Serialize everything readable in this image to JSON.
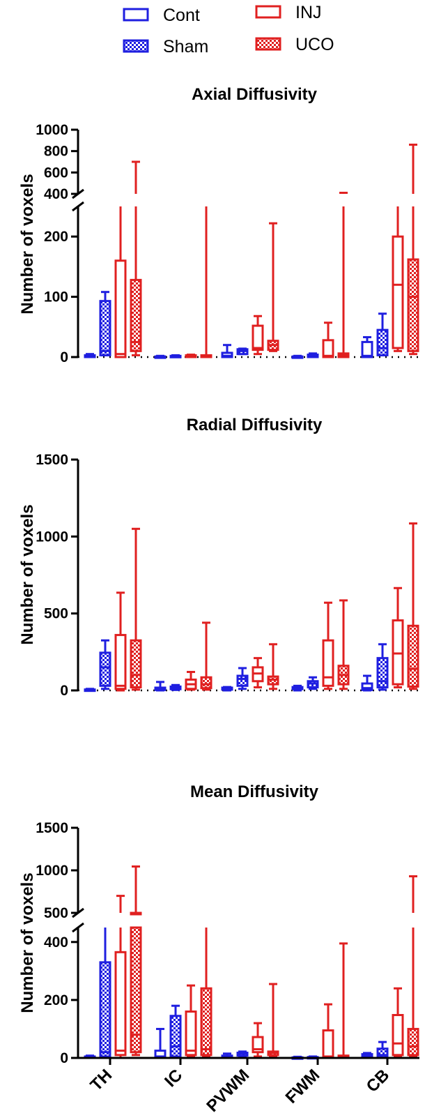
{
  "legend": {
    "entries": [
      {
        "label": "Cont",
        "color": "#1f1fe0",
        "pattern": "open"
      },
      {
        "label": "INJ",
        "color": "#e02020",
        "pattern": "open"
      },
      {
        "label": "Sham",
        "color": "#1f1fe0",
        "pattern": "checker"
      },
      {
        "label": "UCO",
        "color": "#e02020",
        "pattern": "checker"
      }
    ]
  },
  "chart_data": [
    {
      "type": "box",
      "title": "Axial Diffusivity",
      "ylabel": "Number of voxels",
      "categories": [
        "TH",
        "IC",
        "PVWM",
        "FWM",
        "CB"
      ],
      "broken_axis": {
        "lower_range": [
          0,
          250
        ],
        "upper_range": [
          400,
          1000
        ]
      },
      "yticks_lower": [
        "0",
        "100",
        "200"
      ],
      "yticks_upper": [
        "400",
        "600",
        "800",
        "1000"
      ],
      "series": [
        {
          "name": "Cont",
          "boxes": [
            {
              "min": 0,
              "q1": 0,
              "median": 1,
              "q3": 3,
              "max": 5
            },
            {
              "min": 0,
              "q1": 0,
              "median": 0,
              "q3": 1,
              "max": 2
            },
            {
              "min": 0,
              "q1": 0,
              "median": 2,
              "q3": 7,
              "max": 20
            },
            {
              "min": 0,
              "q1": 0,
              "median": 0,
              "q3": 1,
              "max": 2
            },
            {
              "min": 0,
              "q1": 0,
              "median": 2,
              "q3": 25,
              "max": 33
            }
          ]
        },
        {
          "name": "Sham",
          "boxes": [
            {
              "min": 3,
              "q1": 3,
              "median": 10,
              "q3": 93,
              "max": 108
            },
            {
              "min": 0,
              "q1": 0,
              "median": 1,
              "q3": 2,
              "max": 3
            },
            {
              "min": 5,
              "q1": 5,
              "median": 10,
              "q3": 13,
              "max": 14
            },
            {
              "min": 0,
              "q1": 0,
              "median": 2,
              "q3": 4,
              "max": 6
            },
            {
              "min": 3,
              "q1": 3,
              "median": 15,
              "q3": 45,
              "max": 72
            }
          ]
        },
        {
          "name": "INJ",
          "boxes": [
            {
              "min": 0,
              "q1": 0,
              "median": 5,
              "q3": 160,
              "max": 250
            },
            {
              "min": 0,
              "q1": 0,
              "median": 1,
              "q3": 3,
              "max": 4
            },
            {
              "min": 5,
              "q1": 12,
              "median": 15,
              "q3": 52,
              "max": 68
            },
            {
              "min": 0,
              "q1": 0,
              "median": 2,
              "q3": 28,
              "max": 57
            },
            {
              "min": 10,
              "q1": 15,
              "median": 120,
              "q3": 200,
              "max": 250
            }
          ]
        },
        {
          "name": "UCO",
          "boxes": [
            {
              "min": 3,
              "q1": 10,
              "median": 25,
              "q3": 128,
              "max": 700
            },
            {
              "min": 0,
              "q1": 0,
              "median": 1,
              "q3": 3,
              "max": 250
            },
            {
              "min": 10,
              "q1": 12,
              "median": 20,
              "q3": 27,
              "max": 222
            },
            {
              "min": 0,
              "q1": 0,
              "median": 3,
              "q3": 6,
              "max": 410
            },
            {
              "min": 5,
              "q1": 10,
              "median": 100,
              "q3": 162,
              "max": 860
            }
          ]
        }
      ]
    },
    {
      "type": "box",
      "title": "Radial Diffusivity",
      "ylabel": "Number of voxels",
      "categories": [
        "TH",
        "IC",
        "PVWM",
        "FWM",
        "CB"
      ],
      "ylim": [
        0,
        1500
      ],
      "yticks": [
        "0",
        "500",
        "1000",
        "1500"
      ],
      "series": [
        {
          "name": "Cont",
          "boxes": [
            {
              "min": 0,
              "q1": 1,
              "median": 3,
              "q3": 6,
              "max": 10
            },
            {
              "min": 0,
              "q1": 3,
              "median": 10,
              "q3": 18,
              "max": 55
            },
            {
              "min": 0,
              "q1": 5,
              "median": 12,
              "q3": 18,
              "max": 22
            },
            {
              "min": 0,
              "q1": 8,
              "median": 15,
              "q3": 22,
              "max": 30
            },
            {
              "min": 0,
              "q1": 3,
              "median": 15,
              "q3": 45,
              "max": 95
            }
          ]
        },
        {
          "name": "Sham",
          "boxes": [
            {
              "min": 10,
              "q1": 30,
              "median": 150,
              "q3": 245,
              "max": 325
            },
            {
              "min": 3,
              "q1": 8,
              "median": 15,
              "q3": 25,
              "max": 35
            },
            {
              "min": 10,
              "q1": 30,
              "median": 75,
              "q3": 95,
              "max": 145
            },
            {
              "min": 10,
              "q1": 20,
              "median": 45,
              "q3": 60,
              "max": 85
            },
            {
              "min": 5,
              "q1": 20,
              "median": 60,
              "q3": 210,
              "max": 300
            }
          ]
        },
        {
          "name": "INJ",
          "boxes": [
            {
              "min": 0,
              "q1": 10,
              "median": 30,
              "q3": 360,
              "max": 635
            },
            {
              "min": 5,
              "q1": 10,
              "median": 40,
              "q3": 70,
              "max": 120
            },
            {
              "min": 20,
              "q1": 60,
              "median": 110,
              "q3": 150,
              "max": 210
            },
            {
              "min": 10,
              "q1": 30,
              "median": 85,
              "q3": 325,
              "max": 570
            },
            {
              "min": 20,
              "q1": 40,
              "median": 240,
              "q3": 455,
              "max": 665
            }
          ]
        },
        {
          "name": "UCO",
          "boxes": [
            {
              "min": 5,
              "q1": 20,
              "median": 100,
              "q3": 325,
              "max": 1050
            },
            {
              "min": 5,
              "q1": 15,
              "median": 40,
              "q3": 85,
              "max": 440
            },
            {
              "min": 10,
              "q1": 40,
              "median": 70,
              "q3": 90,
              "max": 300
            },
            {
              "min": 10,
              "q1": 40,
              "median": 100,
              "q3": 160,
              "max": 585
            },
            {
              "min": 10,
              "q1": 25,
              "median": 140,
              "q3": 420,
              "max": 1085
            }
          ]
        }
      ]
    },
    {
      "type": "box",
      "title": "Mean Diffusivity",
      "ylabel": "Number of voxels",
      "categories": [
        "TH",
        "IC",
        "PVWM",
        "FWM",
        "CB"
      ],
      "broken_axis": {
        "lower_range": [
          0,
          450
        ],
        "upper_range": [
          500,
          1500
        ]
      },
      "yticks_lower": [
        "0",
        "200",
        "400"
      ],
      "yticks_upper": [
        "500",
        "1000",
        "1500"
      ],
      "series": [
        {
          "name": "Cont",
          "boxes": [
            {
              "min": 0,
              "q1": 0,
              "median": 2,
              "q3": 5,
              "max": 8
            },
            {
              "min": 0,
              "q1": 0,
              "median": 5,
              "q3": 25,
              "max": 100
            },
            {
              "min": 0,
              "q1": 0,
              "median": 3,
              "q3": 8,
              "max": 15
            },
            {
              "min": 0,
              "q1": 0,
              "median": 0,
              "q3": 2,
              "max": 4
            },
            {
              "min": 0,
              "q1": 3,
              "median": 8,
              "q3": 13,
              "max": 17
            }
          ]
        },
        {
          "name": "Sham",
          "boxes": [
            {
              "min": 5,
              "q1": 5,
              "median": 20,
              "q3": 330,
              "max": 450
            },
            {
              "min": 5,
              "q1": 5,
              "median": 40,
              "q3": 145,
              "max": 180
            },
            {
              "min": 5,
              "q1": 8,
              "median": 15,
              "q3": 18,
              "max": 22
            },
            {
              "min": 0,
              "q1": 0,
              "median": 1,
              "q3": 3,
              "max": 5
            },
            {
              "min": 3,
              "q1": 3,
              "median": 10,
              "q3": 32,
              "max": 55
            }
          ]
        },
        {
          "name": "INJ",
          "boxes": [
            {
              "min": 0,
              "q1": 10,
              "median": 25,
              "q3": 365,
              "max": 700
            },
            {
              "min": 5,
              "q1": 10,
              "median": 25,
              "q3": 160,
              "max": 250
            },
            {
              "min": 5,
              "q1": 20,
              "median": 30,
              "q3": 72,
              "max": 120
            },
            {
              "min": 0,
              "q1": 3,
              "median": 5,
              "q3": 95,
              "max": 185
            },
            {
              "min": 5,
              "q1": 10,
              "median": 50,
              "q3": 148,
              "max": 240
            }
          ]
        },
        {
          "name": "UCO",
          "boxes": [
            {
              "min": 10,
              "q1": 20,
              "median": 80,
              "q3": 500,
              "max": 1045
            },
            {
              "min": 5,
              "q1": 10,
              "median": 30,
              "q3": 240,
              "max": 450
            },
            {
              "min": 5,
              "q1": 10,
              "median": 18,
              "q3": 22,
              "max": 255
            },
            {
              "min": 0,
              "q1": 3,
              "median": 5,
              "q3": 8,
              "max": 395
            },
            {
              "min": 5,
              "q1": 10,
              "median": 40,
              "q3": 100,
              "max": 930
            }
          ]
        }
      ]
    }
  ]
}
